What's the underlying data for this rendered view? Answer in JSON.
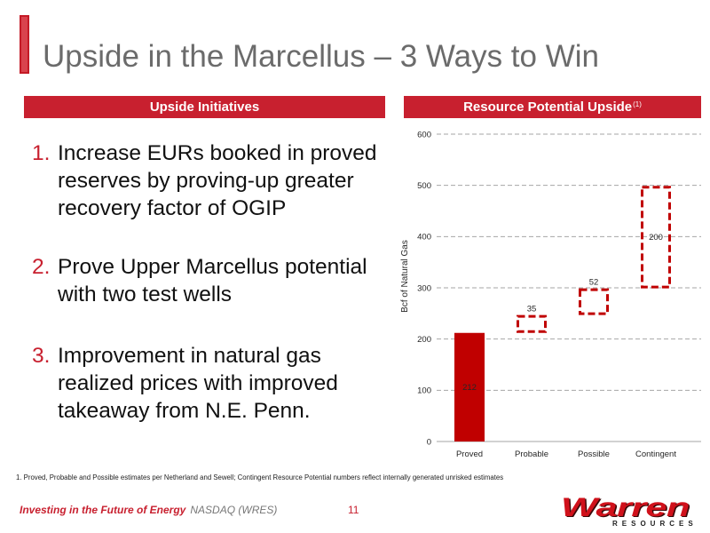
{
  "slide": {
    "title": "Upside in the Marcellus – 3 Ways to Win",
    "left_header": "Upside Initiatives",
    "initiatives": [
      {
        "number": "1.",
        "text": "Increase EURs booked in proved reserves by proving-up greater recovery factor of OGIP"
      },
      {
        "number": "2.",
        "text": "Prove Upper Marcellus potential with two test wells"
      },
      {
        "number": "3.",
        "text": "Improvement in natural gas realized prices with improved takeaway from N.E. Penn."
      }
    ],
    "footnote": "1. Proved, Probable and Possible estimates per Netherland and Sewell; Contingent Resource Potential numbers reflect internally generated unrisked estimates"
  },
  "footer": {
    "tagline": "Investing in the Future of Energy",
    "ticker": "NASDAQ (WRES)",
    "page_number": "11",
    "logo_name": "Warren",
    "logo_sub": "RESOURCES"
  },
  "colors": {
    "accent": "#c8202f",
    "title": "#6b6b6b",
    "chart_red": "#c00000",
    "grid": "#a6a6a6"
  },
  "chart_data": {
    "type": "bar",
    "waterfall": true,
    "title": "Resource Potential Upside",
    "title_note": "(1)",
    "categories": [
      "Proved",
      "Probable",
      "Possible",
      "Contingent"
    ],
    "values": [
      212,
      35,
      52,
      200
    ],
    "bar_style": [
      "solid",
      "dashed",
      "dashed",
      "dashed"
    ],
    "xlabel": "",
    "ylabel": "Bcf of Natural Gas",
    "ylim": [
      0,
      600
    ],
    "yticks": [
      0,
      100,
      200,
      300,
      400,
      500,
      600
    ],
    "grid": true
  }
}
